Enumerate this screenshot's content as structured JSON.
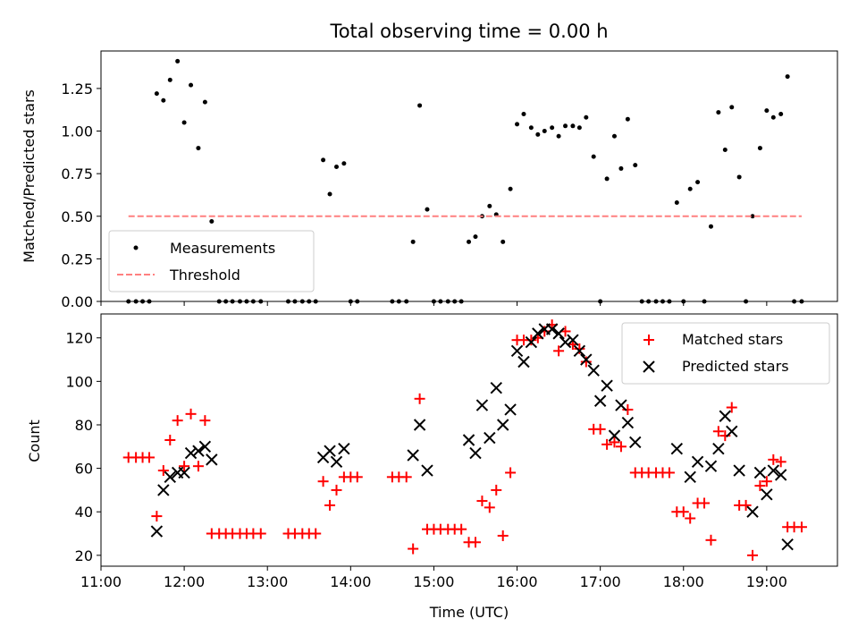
{
  "title": "Total observing time = 0.00 h",
  "xlabel": "Time (UTC)",
  "chart_data": [
    {
      "type": "scatter",
      "ylabel": "Matched/Predicted stars",
      "xlim": [
        11.0,
        19.85
      ],
      "ylim": [
        0,
        1.47
      ],
      "ytick_values": [
        0,
        0.25,
        0.5,
        0.75,
        1.0,
        1.25
      ],
      "ytick_labels": [
        "0.00",
        "0.25",
        "0.50",
        "0.75",
        "1.00",
        "1.25"
      ],
      "legend_position": "lower-left",
      "legend": [
        "Measurements",
        "Threshold"
      ],
      "series": [
        {
          "name": "Measurements",
          "color": "#000000",
          "points": [
            [
              11.33,
              0
            ],
            [
              11.42,
              0
            ],
            [
              11.5,
              0
            ],
            [
              11.58,
              0
            ],
            [
              11.67,
              1.22
            ],
            [
              11.75,
              1.18
            ],
            [
              11.83,
              1.3
            ],
            [
              11.92,
              1.41
            ],
            [
              12.0,
              1.05
            ],
            [
              12.08,
              1.27
            ],
            [
              12.17,
              0.9
            ],
            [
              12.25,
              1.17
            ],
            [
              12.33,
              0.47
            ],
            [
              12.42,
              0
            ],
            [
              12.5,
              0
            ],
            [
              12.58,
              0
            ],
            [
              12.67,
              0
            ],
            [
              12.75,
              0
            ],
            [
              12.83,
              0
            ],
            [
              12.92,
              0
            ],
            [
              13.25,
              0
            ],
            [
              13.33,
              0
            ],
            [
              13.42,
              0
            ],
            [
              13.5,
              0
            ],
            [
              13.58,
              0
            ],
            [
              13.67,
              0.83
            ],
            [
              13.75,
              0.63
            ],
            [
              13.83,
              0.79
            ],
            [
              13.92,
              0.81
            ],
            [
              14.0,
              0
            ],
            [
              14.08,
              0
            ],
            [
              14.5,
              0
            ],
            [
              14.58,
              0
            ],
            [
              14.67,
              0
            ],
            [
              14.75,
              0.35
            ],
            [
              14.83,
              1.15
            ],
            [
              14.92,
              0.54
            ],
            [
              15.0,
              0
            ],
            [
              15.08,
              0
            ],
            [
              15.17,
              0
            ],
            [
              15.25,
              0
            ],
            [
              15.33,
              0
            ],
            [
              15.42,
              0.35
            ],
            [
              15.5,
              0.38
            ],
            [
              15.58,
              0.5
            ],
            [
              15.67,
              0.56
            ],
            [
              15.75,
              0.51
            ],
            [
              15.83,
              0.35
            ],
            [
              15.92,
              0.66
            ],
            [
              16.0,
              1.04
            ],
            [
              16.08,
              1.1
            ],
            [
              16.17,
              1.02
            ],
            [
              16.25,
              0.98
            ],
            [
              16.33,
              1.0
            ],
            [
              16.42,
              1.02
            ],
            [
              16.5,
              0.97
            ],
            [
              16.58,
              1.03
            ],
            [
              16.67,
              1.03
            ],
            [
              16.75,
              1.02
            ],
            [
              16.83,
              1.08
            ],
            [
              16.92,
              0.85
            ],
            [
              17.0,
              0
            ],
            [
              17.08,
              0.72
            ],
            [
              17.17,
              0.97
            ],
            [
              17.25,
              0.78
            ],
            [
              17.33,
              1.07
            ],
            [
              17.42,
              0.8
            ],
            [
              17.5,
              0
            ],
            [
              17.58,
              0
            ],
            [
              17.67,
              0
            ],
            [
              17.75,
              0
            ],
            [
              17.83,
              0
            ],
            [
              17.92,
              0.58
            ],
            [
              18.0,
              0
            ],
            [
              18.08,
              0.66
            ],
            [
              18.17,
              0.7
            ],
            [
              18.25,
              0
            ],
            [
              18.33,
              0.44
            ],
            [
              18.42,
              1.11
            ],
            [
              18.5,
              0.89
            ],
            [
              18.58,
              1.14
            ],
            [
              18.67,
              0.73
            ],
            [
              18.75,
              0
            ],
            [
              18.83,
              0.5
            ],
            [
              18.92,
              0.9
            ],
            [
              19.0,
              1.12
            ],
            [
              19.08,
              1.08
            ],
            [
              19.17,
              1.1
            ],
            [
              19.25,
              1.32
            ],
            [
              19.33,
              0
            ],
            [
              19.42,
              0
            ]
          ]
        },
        {
          "name": "Threshold",
          "color": "#ff8080",
          "line": [
            [
              11.33,
              0.5
            ],
            [
              19.42,
              0.5
            ]
          ]
        }
      ]
    },
    {
      "type": "scatter",
      "ylabel": "Count",
      "xlim": [
        11.0,
        19.85
      ],
      "ylim": [
        15,
        131
      ],
      "ytick_values": [
        20,
        40,
        60,
        80,
        100,
        120
      ],
      "ytick_labels": [
        "20",
        "40",
        "60",
        "80",
        "100",
        "120"
      ],
      "xtick_values": [
        11,
        12,
        13,
        14,
        15,
        16,
        17,
        18,
        19
      ],
      "xtick_labels": [
        "11:00",
        "12:00",
        "13:00",
        "14:00",
        "15:00",
        "16:00",
        "17:00",
        "18:00",
        "19:00"
      ],
      "legend_position": "upper-right",
      "legend": [
        "Matched stars",
        "Predicted stars"
      ],
      "series": [
        {
          "name": "Matched stars",
          "color": "#ff0000",
          "marker": "plus",
          "points": [
            [
              11.33,
              65
            ],
            [
              11.42,
              65
            ],
            [
              11.5,
              65
            ],
            [
              11.58,
              65
            ],
            [
              11.67,
              38
            ],
            [
              11.75,
              59
            ],
            [
              11.83,
              73
            ],
            [
              11.92,
              82
            ],
            [
              12.0,
              61
            ],
            [
              12.08,
              85
            ],
            [
              12.17,
              61
            ],
            [
              12.25,
              82
            ],
            [
              12.33,
              30
            ],
            [
              12.42,
              30
            ],
            [
              12.5,
              30
            ],
            [
              12.58,
              30
            ],
            [
              12.67,
              30
            ],
            [
              12.75,
              30
            ],
            [
              12.83,
              30
            ],
            [
              12.92,
              30
            ],
            [
              13.25,
              30
            ],
            [
              13.33,
              30
            ],
            [
              13.42,
              30
            ],
            [
              13.5,
              30
            ],
            [
              13.58,
              30
            ],
            [
              13.67,
              54
            ],
            [
              13.75,
              43
            ],
            [
              13.83,
              50
            ],
            [
              13.92,
              56
            ],
            [
              14.0,
              56
            ],
            [
              14.08,
              56
            ],
            [
              14.5,
              56
            ],
            [
              14.58,
              56
            ],
            [
              14.67,
              56
            ],
            [
              14.75,
              23
            ],
            [
              14.83,
              92
            ],
            [
              14.92,
              32
            ],
            [
              15.0,
              32
            ],
            [
              15.08,
              32
            ],
            [
              15.17,
              32
            ],
            [
              15.25,
              32
            ],
            [
              15.33,
              32
            ],
            [
              15.42,
              26
            ],
            [
              15.5,
              26
            ],
            [
              15.58,
              45
            ],
            [
              15.67,
              42
            ],
            [
              15.75,
              50
            ],
            [
              15.83,
              29
            ],
            [
              15.92,
              58
            ],
            [
              16.0,
              119
            ],
            [
              16.08,
              119
            ],
            [
              16.17,
              119
            ],
            [
              16.25,
              120
            ],
            [
              16.33,
              123
            ],
            [
              16.42,
              126
            ],
            [
              16.5,
              114
            ],
            [
              16.58,
              123
            ],
            [
              16.67,
              117
            ],
            [
              16.75,
              115
            ],
            [
              16.83,
              109
            ],
            [
              16.92,
              78
            ],
            [
              17.0,
              78
            ],
            [
              17.08,
              71
            ],
            [
              17.17,
              72
            ],
            [
              17.25,
              70
            ],
            [
              17.33,
              87
            ],
            [
              17.42,
              58
            ],
            [
              17.5,
              58
            ],
            [
              17.58,
              58
            ],
            [
              17.67,
              58
            ],
            [
              17.75,
              58
            ],
            [
              17.83,
              58
            ],
            [
              17.92,
              40
            ],
            [
              18.0,
              40
            ],
            [
              18.08,
              37
            ],
            [
              18.17,
              44
            ],
            [
              18.25,
              44
            ],
            [
              18.33,
              27
            ],
            [
              18.42,
              77
            ],
            [
              18.5,
              75
            ],
            [
              18.58,
              88
            ],
            [
              18.67,
              43
            ],
            [
              18.75,
              43
            ],
            [
              18.83,
              20
            ],
            [
              18.92,
              52
            ],
            [
              19.0,
              54
            ],
            [
              19.08,
              64
            ],
            [
              19.17,
              63
            ],
            [
              19.25,
              33
            ],
            [
              19.33,
              33
            ],
            [
              19.42,
              33
            ]
          ]
        },
        {
          "name": "Predicted stars",
          "color": "#000000",
          "marker": "x",
          "points": [
            [
              11.67,
              31
            ],
            [
              11.75,
              50
            ],
            [
              11.83,
              56
            ],
            [
              11.92,
              58
            ],
            [
              12.0,
              58
            ],
            [
              12.08,
              67
            ],
            [
              12.17,
              68
            ],
            [
              12.25,
              70
            ],
            [
              12.33,
              64
            ],
            [
              13.67,
              65
            ],
            [
              13.75,
              68
            ],
            [
              13.83,
              63
            ],
            [
              13.92,
              69
            ],
            [
              14.75,
              66
            ],
            [
              14.83,
              80
            ],
            [
              14.92,
              59
            ],
            [
              15.42,
              73
            ],
            [
              15.5,
              67
            ],
            [
              15.58,
              89
            ],
            [
              15.67,
              74
            ],
            [
              15.75,
              97
            ],
            [
              15.83,
              80
            ],
            [
              15.92,
              87
            ],
            [
              16.0,
              114
            ],
            [
              16.08,
              109
            ],
            [
              16.17,
              118
            ],
            [
              16.25,
              122
            ],
            [
              16.33,
              124
            ],
            [
              16.42,
              124
            ],
            [
              16.5,
              122
            ],
            [
              16.58,
              118
            ],
            [
              16.67,
              119
            ],
            [
              16.75,
              114
            ],
            [
              16.83,
              110
            ],
            [
              16.92,
              105
            ],
            [
              17.0,
              91
            ],
            [
              17.08,
              98
            ],
            [
              17.17,
              75
            ],
            [
              17.25,
              89
            ],
            [
              17.33,
              81
            ],
            [
              17.42,
              72
            ],
            [
              17.92,
              69
            ],
            [
              18.08,
              56
            ],
            [
              18.17,
              63
            ],
            [
              18.33,
              61
            ],
            [
              18.42,
              69
            ],
            [
              18.5,
              84
            ],
            [
              18.58,
              77
            ],
            [
              18.67,
              59
            ],
            [
              18.83,
              40
            ],
            [
              18.92,
              58
            ],
            [
              19.0,
              48
            ],
            [
              19.08,
              59
            ],
            [
              19.17,
              57
            ],
            [
              19.25,
              25
            ]
          ]
        }
      ]
    }
  ]
}
